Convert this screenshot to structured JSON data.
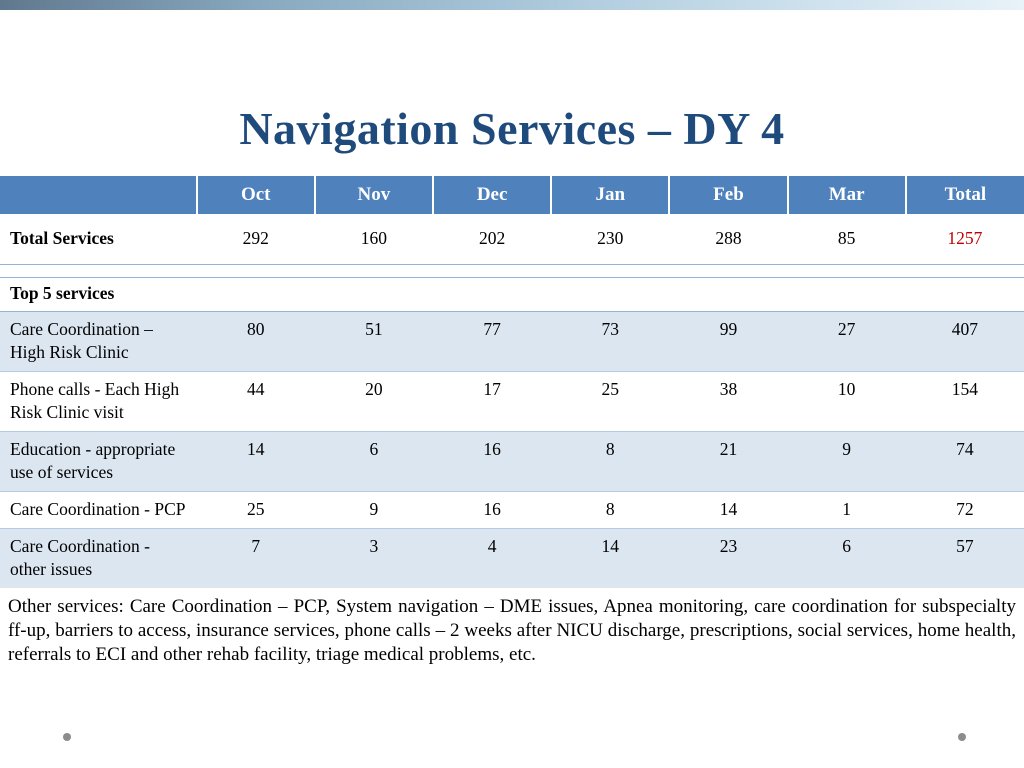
{
  "title": "Navigation Services – DY 4",
  "table": {
    "columns": [
      "",
      "Oct",
      "Nov",
      "Dec",
      "Jan",
      "Feb",
      "Mar",
      "Total"
    ],
    "total_row": {
      "label": "Total Services",
      "values": [
        "292",
        "160",
        "202",
        "230",
        "288",
        "85",
        "1257"
      ]
    },
    "section_label": "Top 5 services",
    "rows": [
      {
        "label": "Care Coordination – High Risk Clinic",
        "values": [
          "80",
          "51",
          "77",
          "73",
          "99",
          "27",
          "407"
        ]
      },
      {
        "label": "Phone calls - Each High Risk Clinic visit",
        "values": [
          "44",
          "20",
          "17",
          "25",
          "38",
          "10",
          "154"
        ]
      },
      {
        "label": "Education - appropriate use of services",
        "values": [
          "14",
          "6",
          "16",
          "8",
          "21",
          "9",
          "74"
        ]
      },
      {
        "label": "Care Coordination - PCP",
        "values": [
          "25",
          "9",
          "16",
          "8",
          "14",
          "1",
          "72"
        ]
      },
      {
        "label": "Care Coordination - other issues",
        "values": [
          "7",
          "3",
          "4",
          "14",
          "23",
          "6",
          "57"
        ]
      }
    ]
  },
  "footer": {
    "text": "Other services: Care Coordination – PCP, System navigation – DME issues, Apnea monitoring, care coordination for subspecialty ff-up, barriers to access, insurance services, phone calls – 2 weeks after NICU discharge, prescriptions, social services, home health, referrals to ECI and other rehab facility, triage medical problems, etc."
  },
  "colors": {
    "title": "#1f4b7c",
    "header_bg": "#4f81bd",
    "row_alt_bg": "#dce6f1",
    "total_value": "#c00000",
    "border": "#95b3d7"
  },
  "chart_data": {
    "type": "table",
    "title": "Navigation Services – DY 4",
    "categories": [
      "Oct",
      "Nov",
      "Dec",
      "Jan",
      "Feb",
      "Mar",
      "Total"
    ],
    "series": [
      {
        "name": "Total Services",
        "values": [
          292,
          160,
          202,
          230,
          288,
          85,
          1257
        ]
      },
      {
        "name": "Care Coordination – High Risk Clinic",
        "values": [
          80,
          51,
          77,
          73,
          99,
          27,
          407
        ]
      },
      {
        "name": "Phone calls - Each High Risk Clinic visit",
        "values": [
          44,
          20,
          17,
          25,
          38,
          10,
          154
        ]
      },
      {
        "name": "Education - appropriate use of services",
        "values": [
          14,
          6,
          16,
          8,
          21,
          9,
          74
        ]
      },
      {
        "name": "Care Coordination - PCP",
        "values": [
          25,
          9,
          16,
          8,
          14,
          1,
          72
        ]
      },
      {
        "name": "Care Coordination - other issues",
        "values": [
          7,
          3,
          4,
          14,
          23,
          6,
          57
        ]
      }
    ]
  }
}
